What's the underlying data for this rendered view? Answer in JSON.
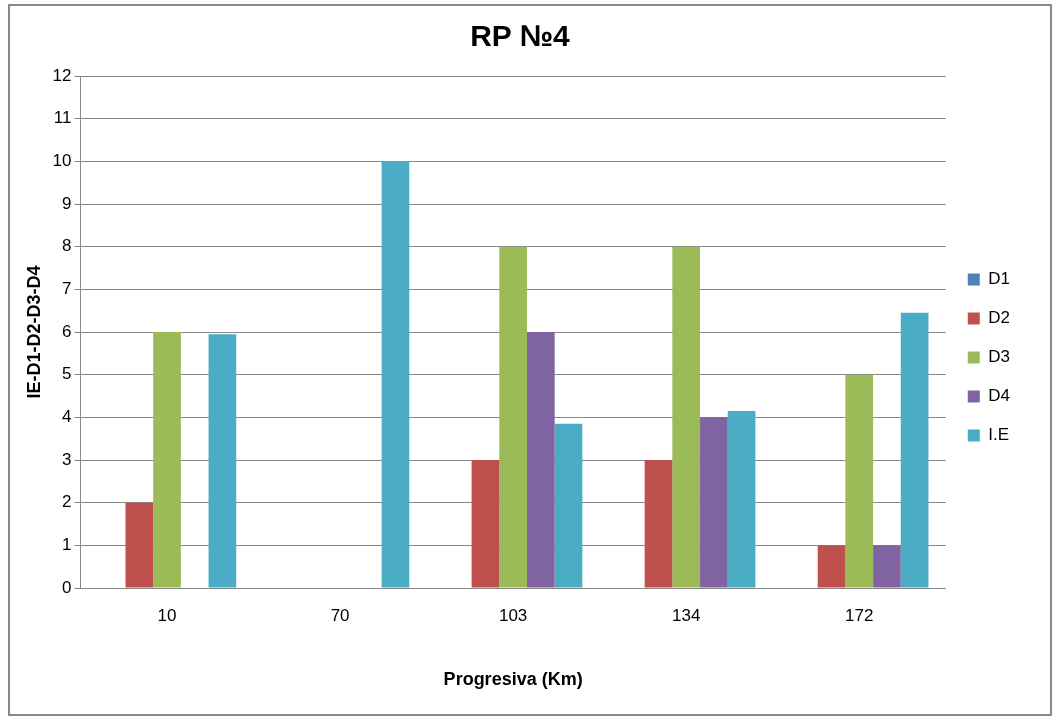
{
  "chart_data": {
    "type": "bar",
    "title": "RP №4",
    "xlabel": "Progresiva (Km)",
    "ylabel": "IE-D1-D2-D3-D4",
    "categories": [
      "10",
      "70",
      "103",
      "134",
      "172"
    ],
    "series": [
      {
        "name": "D1",
        "color": "#4f81bd",
        "values": [
          0,
          0,
          0,
          0,
          0
        ]
      },
      {
        "name": "D2",
        "color": "#c0504d",
        "values": [
          2,
          0,
          3,
          3,
          1
        ]
      },
      {
        "name": "D3",
        "color": "#9bbb59",
        "values": [
          6,
          0,
          8,
          8,
          5
        ]
      },
      {
        "name": "D4",
        "color": "#8064a2",
        "values": [
          0,
          0,
          6,
          4,
          1
        ]
      },
      {
        "name": "I.E",
        "color": "#4bacc6",
        "values": [
          5.95,
          10,
          3.85,
          4.15,
          6.45
        ]
      }
    ],
    "ylim": [
      0,
      12
    ],
    "yticks": [
      0,
      1,
      2,
      3,
      4,
      5,
      6,
      7,
      8,
      9,
      10,
      11,
      12
    ],
    "grid": "y",
    "legend": "right"
  }
}
